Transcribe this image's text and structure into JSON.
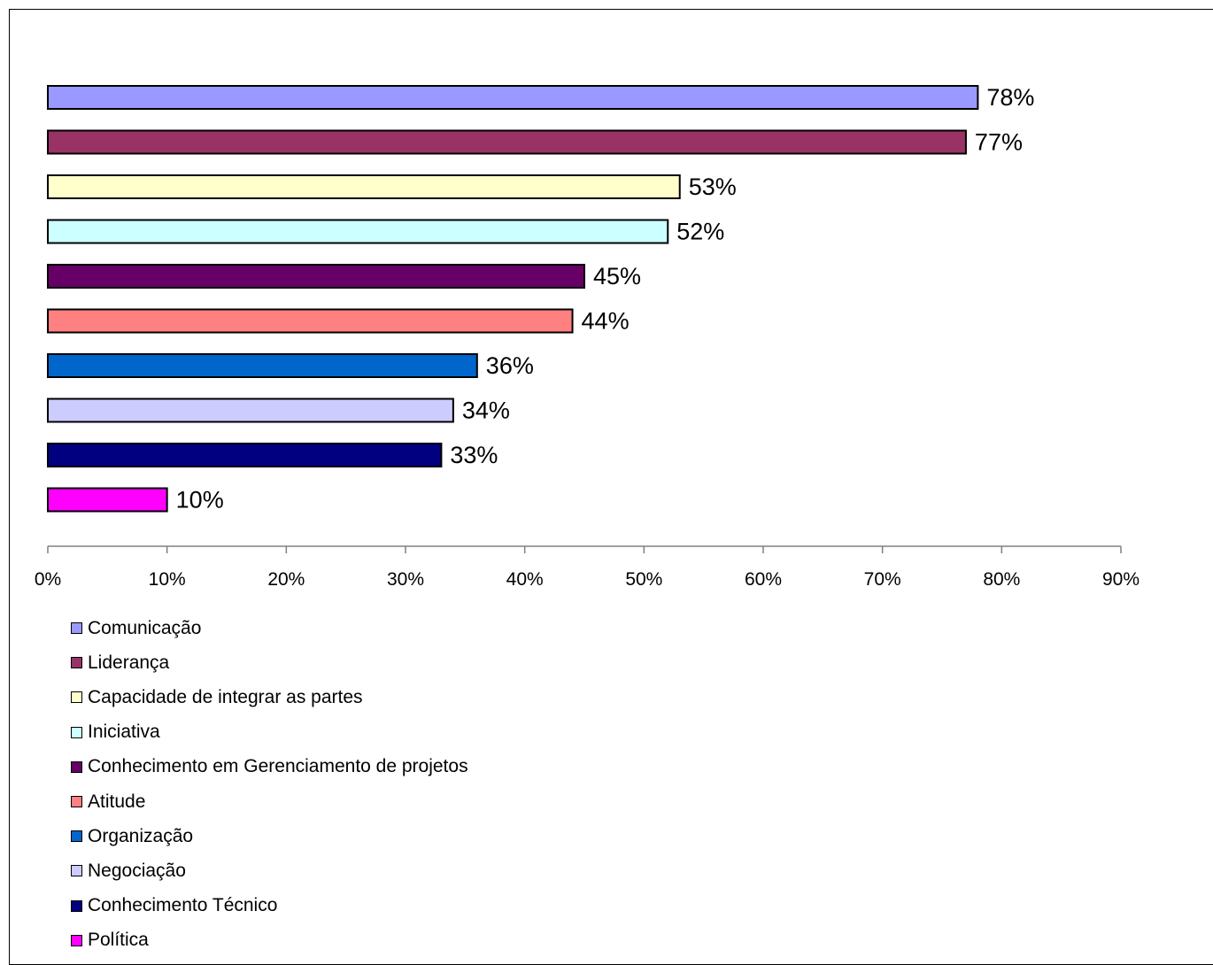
{
  "chart_data": {
    "type": "bar",
    "orientation": "horizontal",
    "categories": [
      "Comunicação",
      "Liderança",
      "Capacidade de integrar as partes",
      "Iniciativa",
      "Conhecimento em Gerenciamento de projetos",
      "Atitude",
      "Organização",
      "Negociação",
      "Conhecimento Técnico",
      "Política"
    ],
    "values": [
      78,
      77,
      53,
      52,
      45,
      44,
      36,
      34,
      33,
      10
    ],
    "data_labels": [
      "78%",
      "77%",
      "53%",
      "52%",
      "45%",
      "44%",
      "36%",
      "34%",
      "33%",
      "10%"
    ],
    "colors": [
      "#9999FF",
      "#993366",
      "#FFFFCC",
      "#CCFFFF",
      "#660066",
      "#FF8080",
      "#0066CC",
      "#CCCCFF",
      "#000080",
      "#FF00FF"
    ],
    "xlim": [
      0,
      90
    ],
    "xticks": [
      0,
      10,
      20,
      30,
      40,
      50,
      60,
      70,
      80,
      90
    ],
    "xtick_labels": [
      "0%",
      "10%",
      "20%",
      "30%",
      "40%",
      "50%",
      "60%",
      "70%",
      "80%",
      "90%"
    ],
    "grid": false,
    "legend_position": "bottom-left",
    "title": "",
    "xlabel": "",
    "ylabel": ""
  }
}
